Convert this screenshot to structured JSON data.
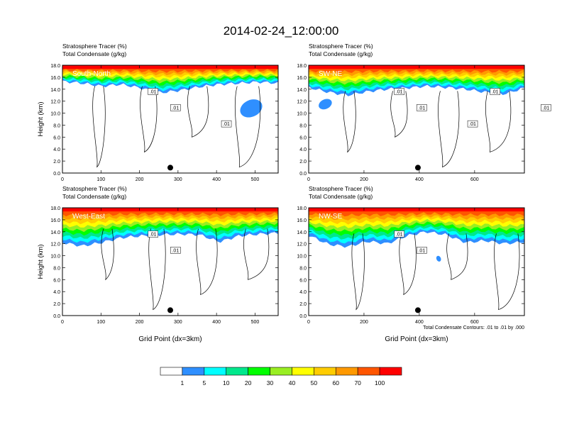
{
  "figure": {
    "title": "2014-02-24_12:00:00",
    "contour_note": "Total Condensate Contours: .01 to .01 by .000"
  },
  "colorbar": {
    "labels": [
      "1",
      "5",
      "10",
      "20",
      "30",
      "40",
      "50",
      "60",
      "70",
      "100"
    ],
    "colors": [
      "#ffffff",
      "#2f8fff",
      "#00ffff",
      "#00e88c",
      "#00ff00",
      "#99ee22",
      "#ffff00",
      "#ffcc00",
      "#ff9900",
      "#ff5500",
      "#ff0000"
    ]
  },
  "chart_data": [
    {
      "type": "heatmap",
      "panel_label": "South-North",
      "subtitle_line1": "Stratosphere Tracer   (%)",
      "subtitle_line2": "Total Condensate   (g/kg)",
      "ylabel": "Height (km)",
      "xlabel": "",
      "xlim": [
        0,
        560
      ],
      "ylim": [
        0,
        18
      ],
      "x_ticks": [
        "0",
        "100",
        "200",
        "300",
        "400",
        "500"
      ],
      "x_tick_values": [
        0,
        100,
        200,
        300,
        400,
        500
      ],
      "y_ticks": [
        "0.0",
        "2.0",
        "4.0",
        "6.0",
        "8.0",
        "10.0",
        "12.0",
        "14.0",
        "16.0",
        "18.0"
      ],
      "contour_labels": [
        ".01",
        ".01",
        ".01"
      ],
      "marker_x": 280,
      "band_base": [
        15.3,
        15.0,
        14.5,
        14.8,
        14.2,
        13.4,
        13.8,
        14.4,
        14.8,
        15.0,
        15.2,
        15.0
      ],
      "blob": [
        490,
        10.8,
        30,
        1.4
      ]
    },
    {
      "type": "heatmap",
      "panel_label": "SW-NE",
      "subtitle_line1": "Stratosphere Tracer   (%)",
      "subtitle_line2": "Total Condensate   (g/kg)",
      "ylabel": "",
      "xlabel": "",
      "xlim": [
        0,
        780
      ],
      "ylim": [
        0,
        18
      ],
      "x_ticks": [
        "0",
        "200",
        "400",
        "600"
      ],
      "x_tick_values": [
        0,
        200,
        400,
        600
      ],
      "y_ticks": [
        "0.0",
        "2.0",
        "4.0",
        "6.0",
        "8.0",
        "10.0",
        "12.0",
        "14.0",
        "16.0",
        "18.0"
      ],
      "contour_labels": [
        ".01",
        ".01",
        ".01",
        ".01",
        ".01"
      ],
      "marker_x": 395,
      "band_base": [
        14.3,
        13.5,
        13.0,
        13.6,
        14.0,
        14.2,
        14.5,
        14.3,
        14.0,
        13.5,
        13.2,
        14.2
      ],
      "blob": [
        60,
        11.5,
        25,
        0.8
      ]
    },
    {
      "type": "heatmap",
      "panel_label": "West-East",
      "subtitle_line1": "Stratosphere Tracer   (%)",
      "subtitle_line2": "Total Condensate   (g/kg)",
      "ylabel": "Height (km)",
      "xlabel": "Grid Point (dx=3km)",
      "xlim": [
        0,
        560
      ],
      "ylim": [
        0,
        18
      ],
      "x_ticks": [
        "0",
        "100",
        "200",
        "300",
        "400",
        "500"
      ],
      "x_tick_values": [
        0,
        100,
        200,
        300,
        400,
        500
      ],
      "y_ticks": [
        "0.0",
        "2.0",
        "4.0",
        "6.0",
        "8.0",
        "10.0",
        "12.0",
        "14.0",
        "16.0",
        "18.0"
      ],
      "contour_labels": [
        ".01",
        ".01"
      ],
      "marker_x": 280,
      "band_base": [
        12.2,
        11.6,
        12.2,
        13.0,
        13.3,
        13.5,
        13.6,
        13.5,
        12.3,
        13.3,
        13.6,
        13.8
      ],
      "blob": null
    },
    {
      "type": "heatmap",
      "panel_label": "NW-SE",
      "subtitle_line1": "Stratosphere Tracer   (%)",
      "subtitle_line2": "Total Condensate   (g/kg)",
      "ylabel": "",
      "xlabel": "Grid Point (dx=3km)",
      "xlim": [
        0,
        780
      ],
      "ylim": [
        0,
        18
      ],
      "x_ticks": [
        "0",
        "200",
        "400",
        "600"
      ],
      "x_tick_values": [
        0,
        200,
        400,
        600
      ],
      "y_ticks": [
        "0.0",
        "2.0",
        "4.0",
        "6.0",
        "8.0",
        "10.0",
        "12.0",
        "14.0",
        "16.0",
        "18.0"
      ],
      "contour_labels": [
        ".01",
        ".01"
      ],
      "marker_x": 395,
      "band_base": [
        13.4,
        11.9,
        11.5,
        12.4,
        12.0,
        13.3,
        14.0,
        13.5,
        12.2,
        12.5,
        12.0,
        12.3
      ],
      "blob": [
        470,
        9.5,
        8,
        0.5
      ]
    }
  ]
}
